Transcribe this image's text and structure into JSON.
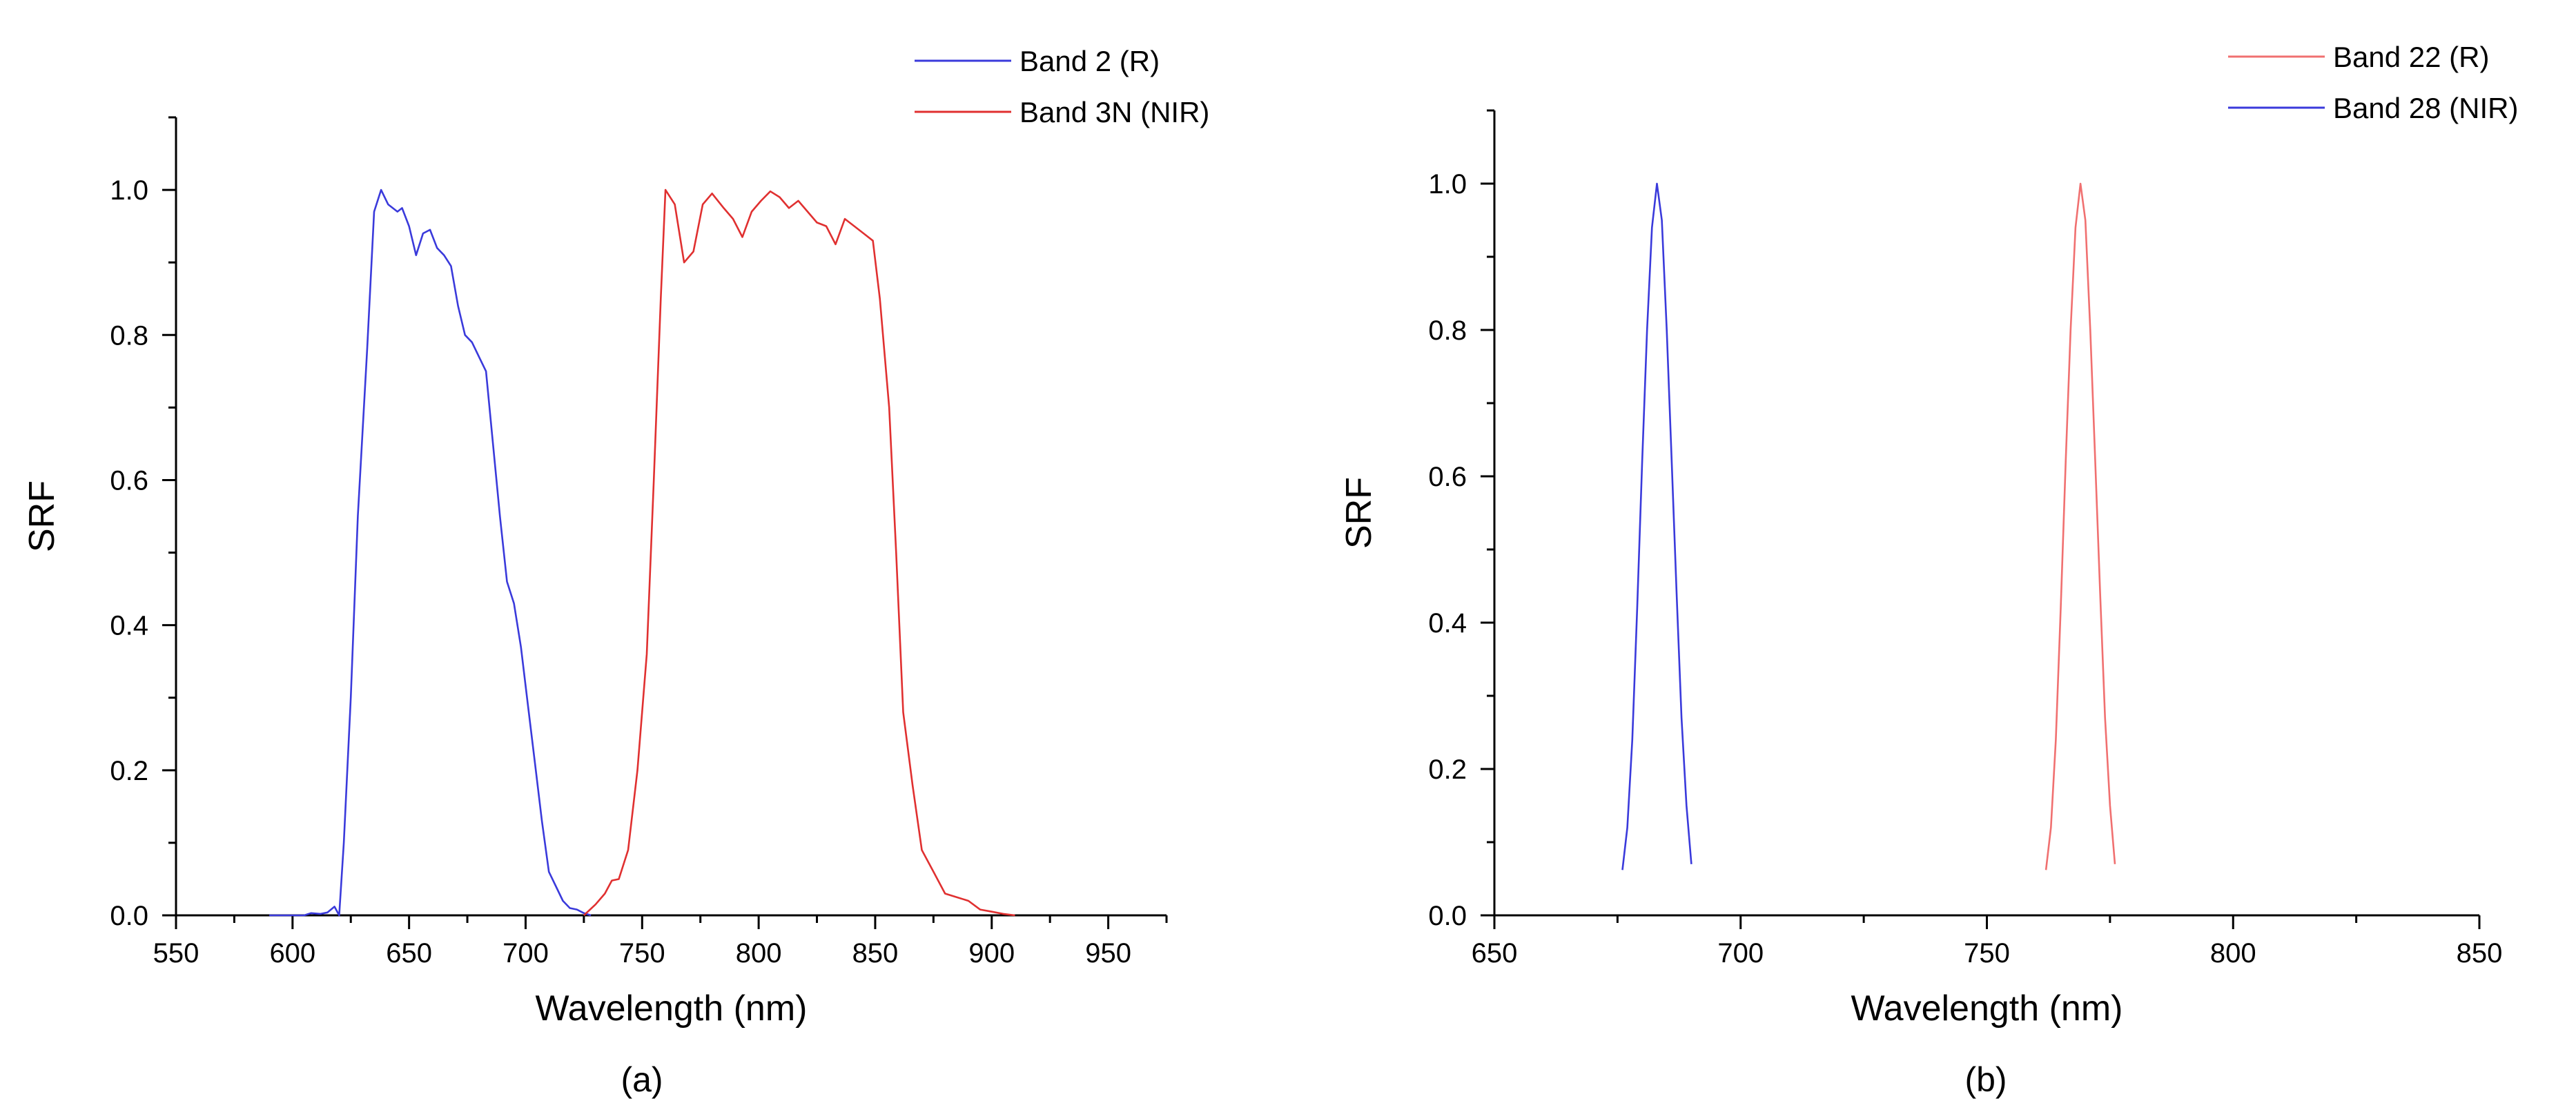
{
  "chart_data": [
    {
      "type": "line",
      "panel_label": "(a)",
      "xlabel": "Wavelength (nm)",
      "ylabel": "SRF",
      "xlim": [
        550,
        975
      ],
      "ylim": [
        0,
        1.1
      ],
      "xticks": [
        550,
        600,
        650,
        700,
        750,
        800,
        850,
        900,
        950
      ],
      "xtick_labels": [
        "550",
        "600",
        "650",
        "700",
        "750",
        "800",
        "850",
        "900",
        "950"
      ],
      "yticks": [
        0.0,
        0.2,
        0.4,
        0.6,
        0.8,
        1.0
      ],
      "ytick_labels": [
        "0.0",
        "0.2",
        "0.4",
        "0.6",
        "0.8",
        "1.0"
      ],
      "legend_position": "top-right",
      "series": [
        {
          "name": "Band 2 (R)",
          "color": "#3a3adb",
          "points": [
            [
              590,
              0.0
            ],
            [
              595,
              0.0
            ],
            [
              600,
              0.0
            ],
            [
              605,
              0.0
            ],
            [
              608,
              0.003
            ],
            [
              612,
              0.002
            ],
            [
              615,
              0.004
            ],
            [
              618,
              0.012
            ],
            [
              620,
              0.0
            ],
            [
              622,
              0.1
            ],
            [
              625,
              0.3
            ],
            [
              628,
              0.55
            ],
            [
              632,
              0.78
            ],
            [
              635,
              0.97
            ],
            [
              638,
              1.0
            ],
            [
              641,
              0.98
            ],
            [
              645,
              0.97
            ],
            [
              647,
              0.975
            ],
            [
              650,
              0.95
            ],
            [
              653,
              0.91
            ],
            [
              656,
              0.94
            ],
            [
              659,
              0.945
            ],
            [
              662,
              0.92
            ],
            [
              665,
              0.91
            ],
            [
              668,
              0.895
            ],
            [
              671,
              0.84
            ],
            [
              674,
              0.8
            ],
            [
              677,
              0.79
            ],
            [
              680,
              0.77
            ],
            [
              683,
              0.75
            ],
            [
              686,
              0.65
            ],
            [
              689,
              0.55
            ],
            [
              692,
              0.46
            ],
            [
              695,
              0.43
            ],
            [
              698,
              0.37
            ],
            [
              701,
              0.29
            ],
            [
              704,
              0.21
            ],
            [
              707,
              0.13
            ],
            [
              710,
              0.06
            ],
            [
              713,
              0.04
            ],
            [
              716,
              0.02
            ],
            [
              719,
              0.01
            ],
            [
              722,
              0.008
            ],
            [
              725,
              0.003
            ],
            [
              728,
              0.0
            ]
          ]
        },
        {
          "name": "Band 3N (NIR)",
          "color": "#e03030",
          "points": [
            [
              725,
              0.0
            ],
            [
              730,
              0.015
            ],
            [
              734,
              0.03
            ],
            [
              737,
              0.048
            ],
            [
              740,
              0.05
            ],
            [
              744,
              0.09
            ],
            [
              748,
              0.2
            ],
            [
              752,
              0.36
            ],
            [
              755,
              0.6
            ],
            [
              758,
              0.85
            ],
            [
              760,
              1.0
            ],
            [
              764,
              0.98
            ],
            [
              768,
              0.9
            ],
            [
              772,
              0.915
            ],
            [
              776,
              0.98
            ],
            [
              780,
              0.995
            ],
            [
              785,
              0.975
            ],
            [
              789,
              0.96
            ],
            [
              793,
              0.935
            ],
            [
              797,
              0.97
            ],
            [
              801,
              0.985
            ],
            [
              805,
              0.998
            ],
            [
              809,
              0.99
            ],
            [
              813,
              0.975
            ],
            [
              817,
              0.985
            ],
            [
              821,
              0.97
            ],
            [
              825,
              0.955
            ],
            [
              829,
              0.95
            ],
            [
              833,
              0.925
            ],
            [
              837,
              0.96
            ],
            [
              841,
              0.95
            ],
            [
              845,
              0.94
            ],
            [
              849,
              0.93
            ],
            [
              852,
              0.85
            ],
            [
              856,
              0.7
            ],
            [
              859,
              0.5
            ],
            [
              862,
              0.28
            ],
            [
              866,
              0.18
            ],
            [
              870,
              0.09
            ],
            [
              875,
              0.06
            ],
            [
              880,
              0.03
            ],
            [
              885,
              0.025
            ],
            [
              890,
              0.02
            ],
            [
              895,
              0.008
            ],
            [
              900,
              0.005
            ],
            [
              905,
              0.002
            ],
            [
              910,
              0.0
            ]
          ]
        }
      ]
    },
    {
      "type": "line",
      "panel_label": "(b)",
      "xlabel": "Wavelength (nm)",
      "ylabel": "SRF",
      "xlim": [
        650,
        850
      ],
      "ylim": [
        0,
        1.1
      ],
      "xticks": [
        650,
        700,
        750,
        800,
        850
      ],
      "xtick_labels": [
        "650",
        "700",
        "750",
        "800",
        "850"
      ],
      "yticks": [
        0.0,
        0.2,
        0.4,
        0.6,
        0.8,
        1.0
      ],
      "ytick_labels": [
        "0.0",
        "0.2",
        "0.4",
        "0.6",
        "0.8",
        "1.0"
      ],
      "legend_position": "top-right",
      "series": [
        {
          "name": "Band 22 (R)",
          "color": "#f07070",
          "points": [
            [
              762,
              0.062
            ],
            [
              763,
              0.12
            ],
            [
              764,
              0.24
            ],
            [
              765,
              0.42
            ],
            [
              766,
              0.62
            ],
            [
              767,
              0.8
            ],
            [
              768,
              0.94
            ],
            [
              769,
              1.0
            ],
            [
              770,
              0.95
            ],
            [
              771,
              0.8
            ],
            [
              772,
              0.62
            ],
            [
              773,
              0.44
            ],
            [
              774,
              0.27
            ],
            [
              775,
              0.15
            ],
            [
              776,
              0.07
            ]
          ]
        },
        {
          "name": "Band 28 (NIR)",
          "color": "#3a3adb",
          "points": [
            [
              676,
              0.062
            ],
            [
              677,
              0.12
            ],
            [
              678,
              0.24
            ],
            [
              679,
              0.42
            ],
            [
              680,
              0.62
            ],
            [
              681,
              0.8
            ],
            [
              682,
              0.94
            ],
            [
              683,
              1.0
            ],
            [
              684,
              0.95
            ],
            [
              685,
              0.8
            ],
            [
              686,
              0.62
            ],
            [
              687,
              0.44
            ],
            [
              688,
              0.27
            ],
            [
              689,
              0.15
            ],
            [
              690,
              0.07
            ]
          ]
        }
      ]
    }
  ]
}
